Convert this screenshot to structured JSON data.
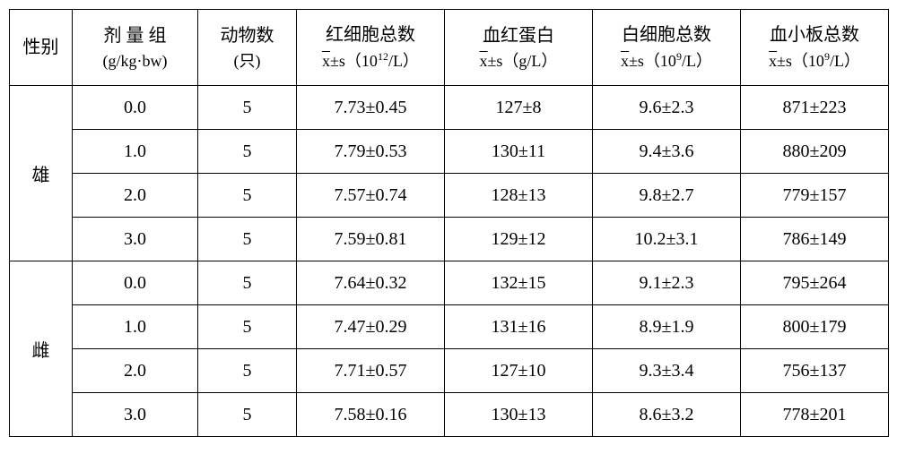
{
  "columns": {
    "sex": "性别",
    "dose_top": "剂  量  组",
    "dose_sub": "(g/kg·bw)",
    "n_top": "动物数",
    "n_sub": "(只)",
    "rbc_top": "红细胞总数",
    "rbc_sub_pre": "±s（10",
    "rbc_sup": "12",
    "rbc_sub_post": "/L）",
    "hb_top": "血红蛋白",
    "hb_sub": "±s（g/L）",
    "wbc_top": "白细胞总数",
    "wbc_sub_pre": "±s（10",
    "wbc_sup": "9",
    "wbc_sub_post": "/L）",
    "plt_top": "血小板总数",
    "plt_sub_pre": "±s（10",
    "plt_sup": "9",
    "plt_sub_post": "/L）",
    "xbar": "x"
  },
  "groups": [
    {
      "sex": "雄",
      "rows": [
        {
          "dose": "0.0",
          "n": "5",
          "rbc": "7.73±0.45",
          "hb": "127±8",
          "wbc": "9.6±2.3",
          "plt": "871±223"
        },
        {
          "dose": "1.0",
          "n": "5",
          "rbc": "7.79±0.53",
          "hb": "130±11",
          "wbc": "9.4±3.6",
          "plt": "880±209"
        },
        {
          "dose": "2.0",
          "n": "5",
          "rbc": "7.57±0.74",
          "hb": "128±13",
          "wbc": "9.8±2.7",
          "plt": "779±157"
        },
        {
          "dose": "3.0",
          "n": "5",
          "rbc": "7.59±0.81",
          "hb": "129±12",
          "wbc": "10.2±3.1",
          "plt": "786±149"
        }
      ]
    },
    {
      "sex": "雌",
      "rows": [
        {
          "dose": "0.0",
          "n": "5",
          "rbc": "7.64±0.32",
          "hb": "132±15",
          "wbc": "9.1±2.3",
          "plt": "795±264"
        },
        {
          "dose": "1.0",
          "n": "5",
          "rbc": "7.47±0.29",
          "hb": "131±16",
          "wbc": "8.9±1.9",
          "plt": "800±179"
        },
        {
          "dose": "2.0",
          "n": "5",
          "rbc": "7.71±0.57",
          "hb": "127±10",
          "wbc": "9.3±3.4",
          "plt": "756±137"
        },
        {
          "dose": "3.0",
          "n": "5",
          "rbc": "7.58±0.16",
          "hb": "130±13",
          "wbc": "8.6±3.2",
          "plt": "778±201"
        }
      ]
    }
  ]
}
